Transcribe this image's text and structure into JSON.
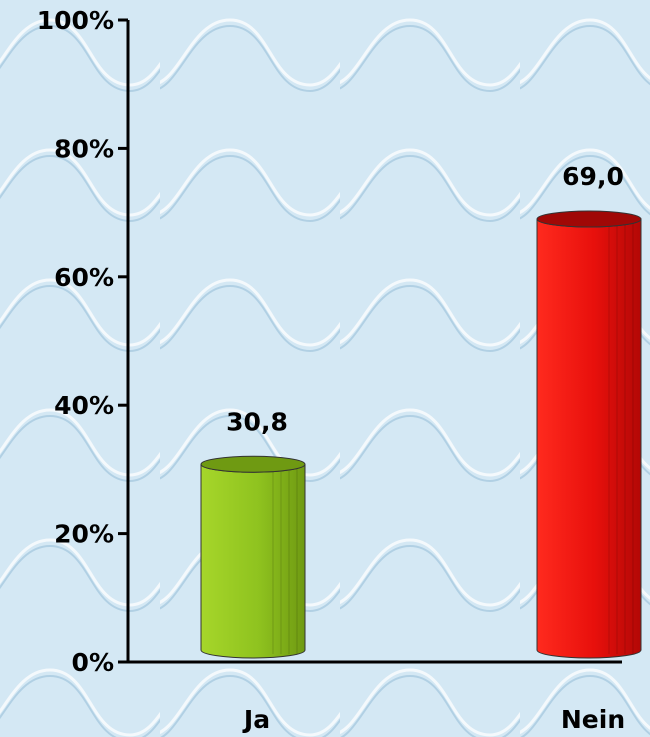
{
  "chart_data": {
    "type": "bar",
    "categories": [
      "Ja",
      "Nein"
    ],
    "values": [
      30.8,
      69.0
    ],
    "value_labels": [
      "30,8",
      "69,0"
    ],
    "colors": [
      "#8fc31f",
      "#e8100c"
    ],
    "ylim": [
      0,
      100
    ],
    "yticks": [
      0,
      20,
      40,
      60,
      80,
      100
    ],
    "ytick_labels": [
      "0%",
      "20%",
      "40%",
      "60%",
      "80%",
      "100%"
    ],
    "title": "",
    "xlabel": "",
    "ylabel": "",
    "grid": false,
    "background": "#d4e8f4"
  }
}
